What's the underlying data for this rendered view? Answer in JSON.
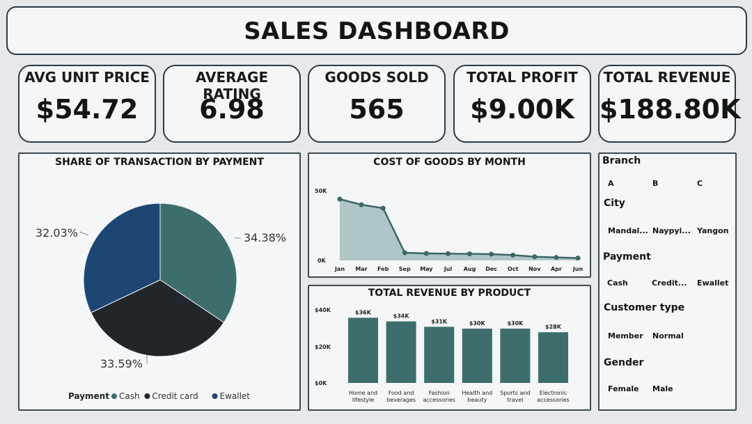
{
  "header": {
    "title": "SALES DASHBOARD"
  },
  "kpis": [
    {
      "label": "AVG UNIT PRICE",
      "value": "$54.72"
    },
    {
      "label": "AVERAGE RATING",
      "value": "6.98"
    },
    {
      "label": "GOODS SOLD",
      "value": "565"
    },
    {
      "label": "TOTAL PROFIT",
      "value": "$9.00K"
    },
    {
      "label": "TOTAL REVENUE",
      "value": "$188.80K"
    }
  ],
  "slicers": {
    "branch": {
      "title": "Branch",
      "items": [
        "A",
        "B",
        "C"
      ]
    },
    "city": {
      "title": "City",
      "items": [
        "Mandal...",
        "Naypyi...",
        "Yangon"
      ]
    },
    "payment": {
      "title": "Payment",
      "items": [
        "Cash",
        "Credit...",
        "Ewallet"
      ]
    },
    "customer_type": {
      "title": "Customer type",
      "items": [
        "Member",
        "Normal"
      ]
    },
    "gender": {
      "title": "Gender",
      "items": [
        "Female",
        "Male"
      ]
    }
  },
  "colors": {
    "cash": "#3d6e6d",
    "credit_card": "#21262b",
    "ewallet": "#1d4673",
    "line": "#3c6766",
    "area": "#a9c0c0",
    "bar": "#3d6e6d"
  },
  "chart_data": [
    {
      "type": "pie",
      "title": "SHARE OF TRANSACTION BY PAYMENT",
      "legend_title": "Payment",
      "legend_position": "bottom",
      "categories": [
        "Cash",
        "Credit card",
        "Ewallet"
      ],
      "values": [
        34.38,
        33.59,
        32.03
      ],
      "labels": [
        "34.38%",
        "33.59%",
        "32.03%"
      ]
    },
    {
      "type": "area",
      "title": "COST OF GOODS BY MONTH",
      "x": [
        "Jan",
        "Mar",
        "Feb",
        "Sep",
        "May",
        "Jul",
        "Aug",
        "Dec",
        "Oct",
        "Nov",
        "Apr",
        "Jun"
      ],
      "y": [
        44000,
        40000,
        37500,
        5500,
        5000,
        4800,
        4700,
        4500,
        3800,
        2600,
        2100,
        1700
      ],
      "ylim": [
        0,
        50000
      ],
      "yticks": [
        "50K",
        "0K"
      ],
      "grid": false
    },
    {
      "type": "bar",
      "title": "TOTAL REVENUE BY PRODUCT",
      "categories": [
        [
          "Home and",
          "lifestyle"
        ],
        [
          "Food and",
          "beverages"
        ],
        [
          "Fashion",
          "accessories"
        ],
        [
          "Health and",
          "beauty"
        ],
        [
          "Sports and",
          "travel"
        ],
        [
          "Electronic",
          "accessories"
        ]
      ],
      "values": [
        36,
        34,
        31,
        30,
        30,
        28
      ],
      "value_labels": [
        "$36K",
        "$34K",
        "$31K",
        "$30K",
        "$30K",
        "$28K"
      ],
      "ylim": [
        0,
        40
      ],
      "yticks": [
        "$40K",
        "$20K",
        "$0K"
      ],
      "grid": false
    }
  ]
}
